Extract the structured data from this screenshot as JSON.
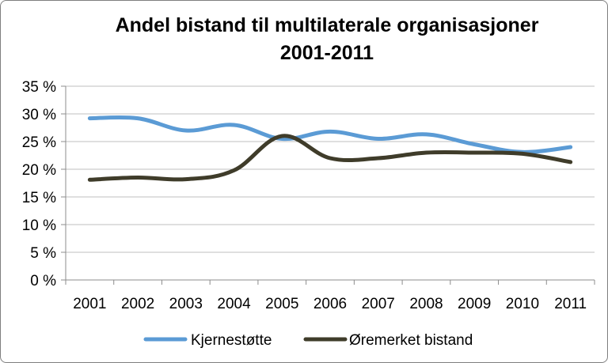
{
  "chart_data": {
    "type": "line",
    "title": "Andel bistand til multilaterale organisasjoner",
    "subtitle": "2001-2011",
    "categories": [
      "2001",
      "2002",
      "2003",
      "2004",
      "2005",
      "2006",
      "2007",
      "2008",
      "2009",
      "2010",
      "2011"
    ],
    "y_ticks": [
      "0 %",
      "5 %",
      "10 %",
      "15 %",
      "20 %",
      "25 %",
      "30 %",
      "35 %"
    ],
    "ylim": [
      0,
      35
    ],
    "grid": true,
    "legend_position": "bottom",
    "series": [
      {
        "name": "Kjernestøtte",
        "color": "#5b9bd5",
        "values": [
          29.2,
          29.2,
          27.0,
          28.0,
          25.5,
          26.8,
          25.5,
          26.3,
          24.5,
          23.1,
          24.0
        ]
      },
      {
        "name": "Øremerket bistand",
        "color": "#3f3c2a",
        "values": [
          18.1,
          18.5,
          18.2,
          19.8,
          26.0,
          22.0,
          22.0,
          23.0,
          23.0,
          22.8,
          21.3
        ]
      }
    ]
  }
}
